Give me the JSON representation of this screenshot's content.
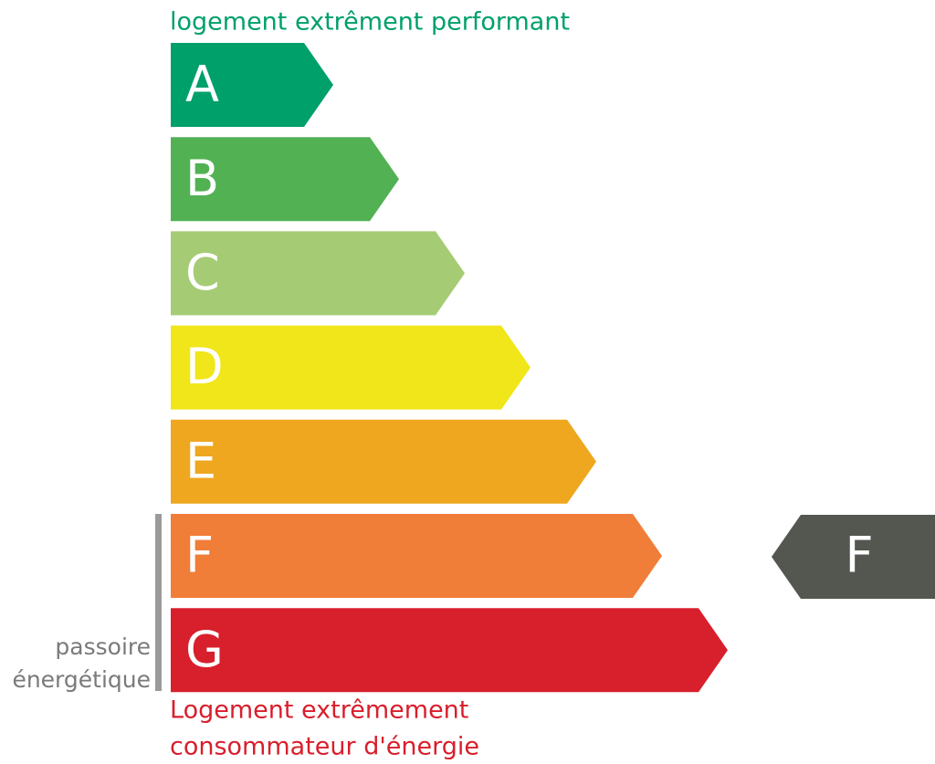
{
  "top_label": "logement extrêment performant",
  "bottom_label": [
    "Logement extrêmement",
    "consommateur d'énergie"
  ],
  "bands": [
    {
      "letter": "A",
      "color": "#00a06b"
    },
    {
      "letter": "B",
      "color": "#52b153"
    },
    {
      "letter": "C",
      "color": "#a5cc74"
    },
    {
      "letter": "D",
      "color": "#f0e619"
    },
    {
      "letter": "E",
      "color": "#eea71f"
    },
    {
      "letter": "F",
      "color": "#f07d38"
    },
    {
      "letter": "G",
      "color": "#d81f2c"
    }
  ],
  "passoire_label": [
    "passoire",
    "énergétique"
  ],
  "indicator": {
    "letter": "F",
    "color": "#545750"
  }
}
